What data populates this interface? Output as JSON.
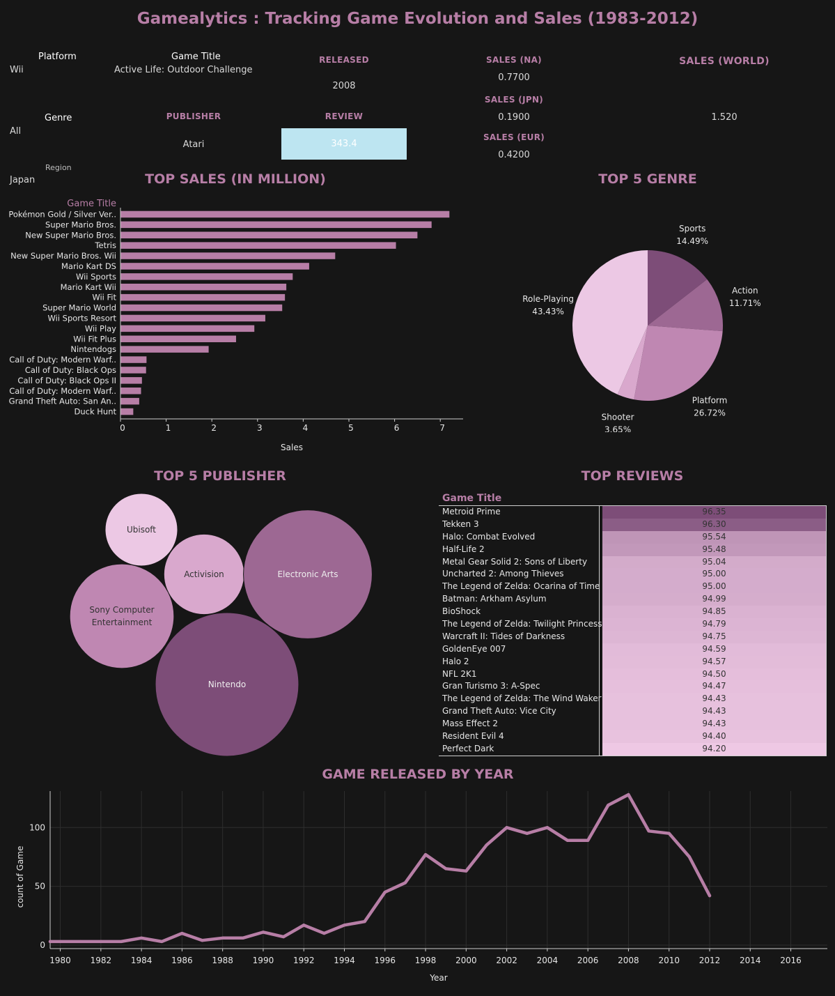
{
  "title": "Gamealytics : Tracking Game Evolution and Sales (1983-2012)",
  "filters": {
    "platform_label": "Platform",
    "platform_value": "Wii",
    "game_title_label": "Game Title",
    "game_title_value": "Active Life: Outdoor Challenge",
    "genre_label": "Genre",
    "genre_value": "All",
    "region_label": "Region",
    "region_value": "Japan"
  },
  "kpis": {
    "released_label": "RELEASED",
    "released_value": "2008",
    "publisher_label": "PUBLISHER",
    "publisher_value": "Atari",
    "review_label": "REVIEW",
    "review_value": "343.4",
    "sales_na_label": "SALES (NA)",
    "sales_na_value": "0.7700",
    "sales_jpn_label": "SALES (JPN)",
    "sales_jpn_value": "0.1900",
    "sales_eur_label": "SALES (EUR)",
    "sales_eur_value": "0.4200",
    "sales_world_label": "SALES (WORLD)",
    "sales_world_value": "1.520"
  },
  "colors": {
    "accent": "#b77ea6",
    "bar": "#b77ea6",
    "review_box": "#bde5f1",
    "line": "#b77ea6"
  },
  "chart_data": [
    {
      "type": "bar",
      "title": "TOP SALES (IN MILLION)",
      "category_header": "Game Title",
      "xlabel": "Sales",
      "xlim": [
        0,
        7.5
      ],
      "xticks": [
        0,
        1,
        2,
        3,
        4,
        5,
        6,
        7
      ],
      "categories": [
        "Pokémon Gold / Silver Ver..",
        "Super Mario Bros.",
        "New Super Mario Bros.",
        "Tetris",
        "New Super Mario Bros. Wii",
        "Mario Kart DS",
        "Wii Sports",
        "Mario Kart Wii",
        "Wii Fit",
        "Super Mario World",
        "Wii Sports Resort",
        "Wii Play",
        "Wii Fit Plus",
        "Nintendogs",
        "Call of Duty: Modern Warf..",
        "Call of Duty: Black Ops",
        "Call of Duty: Black Ops II",
        "Call of Duty: Modern Warf..",
        "Grand Theft Auto: San An..",
        "Duck Hunt"
      ],
      "values": [
        7.2,
        6.81,
        6.5,
        6.03,
        4.7,
        4.13,
        3.77,
        3.63,
        3.6,
        3.54,
        3.17,
        2.93,
        2.53,
        1.93,
        0.57,
        0.56,
        0.47,
        0.45,
        0.41,
        0.28
      ]
    },
    {
      "type": "pie",
      "title": "TOP 5 GENRE",
      "slices": [
        {
          "label": "Sports",
          "pct_label": "14.49%",
          "value": 14.49,
          "color": "#7d4d78"
        },
        {
          "label": "Action",
          "pct_label": "11.71%",
          "value": 11.71,
          "color": "#9d6893"
        },
        {
          "label": "Platform",
          "pct_label": "26.72%",
          "value": 26.72,
          "color": "#bf87b2"
        },
        {
          "label": "Shooter",
          "pct_label": "3.65%",
          "value": 3.65,
          "color": "#d9a8cd"
        },
        {
          "label": "Role-Playing",
          "pct_label": "43.43%",
          "value": 43.43,
          "color": "#ecc8e4"
        }
      ]
    },
    {
      "type": "bubble",
      "title": "TOP 5 PUBLISHER",
      "bubbles": [
        {
          "label": "Ubisoft",
          "size": 1.0,
          "color": "#ecc8e4",
          "text_color": "#333333"
        },
        {
          "label": "Activision",
          "size": 1.23,
          "color": "#d9a8cd",
          "text_color": "#333333"
        },
        {
          "label": "Electronic Arts",
          "size": 3.16,
          "color": "#9d6893",
          "text_color": "#eeeeee"
        },
        {
          "label": "Sony Computer Entertainment",
          "label_lines": [
            "Sony Computer",
            "Entertainment"
          ],
          "size": 2.07,
          "color": "#bf87b2",
          "text_color": "#333333"
        },
        {
          "label": "Nintendo",
          "size": 3.92,
          "color": "#7d4d78",
          "text_color": "#eeeeee"
        }
      ]
    },
    {
      "type": "table",
      "title": "TOP REVIEWS",
      "column_header": "Game Title",
      "rows": [
        {
          "name": "Metroid Prime",
          "value": "96.35"
        },
        {
          "name": "Tekken 3",
          "value": "96.30"
        },
        {
          "name": "Halo: Combat Evolved",
          "value": "95.54"
        },
        {
          "name": "Half-Life 2",
          "value": "95.48"
        },
        {
          "name": "Metal Gear Solid 2: Sons of Liberty",
          "value": "95.04"
        },
        {
          "name": "Uncharted 2: Among Thieves",
          "value": "95.00"
        },
        {
          "name": "The Legend of Zelda: Ocarina of Time",
          "value": "95.00"
        },
        {
          "name": "Batman: Arkham Asylum",
          "value": "94.99"
        },
        {
          "name": "BioShock",
          "value": "94.85"
        },
        {
          "name": "The Legend of Zelda: Twilight Princess",
          "value": "94.79"
        },
        {
          "name": "Warcraft II: Tides of Darkness",
          "value": "94.75"
        },
        {
          "name": "GoldenEye 007",
          "value": "94.59"
        },
        {
          "name": "Halo 2",
          "value": "94.57"
        },
        {
          "name": "NFL 2K1",
          "value": "94.50"
        },
        {
          "name": "Gran Turismo 3: A-Spec",
          "value": "94.47"
        },
        {
          "name": "The Legend of Zelda: The Wind Waker",
          "value": "94.43"
        },
        {
          "name": "Grand Theft Auto: Vice City",
          "value": "94.43"
        },
        {
          "name": "Mass Effect 2",
          "value": "94.43"
        },
        {
          "name": "Resident Evil 4",
          "value": "94.40"
        },
        {
          "name": "Perfect Dark",
          "value": "94.20"
        }
      ]
    },
    {
      "type": "line",
      "title": "GAME RELEASED BY YEAR",
      "xlabel": "Year",
      "ylabel": "count of Game",
      "xlim": [
        1979.5,
        2017.8
      ],
      "ylim": [
        -3,
        131
      ],
      "xticks": [
        1980,
        1982,
        1984,
        1986,
        1988,
        1990,
        1992,
        1994,
        1996,
        1998,
        2000,
        2002,
        2004,
        2006,
        2008,
        2010,
        2012,
        2014,
        2016
      ],
      "yticks": [
        0,
        50,
        100
      ],
      "grid": true,
      "x": [
        1979.5,
        1980,
        1981,
        1982,
        1983,
        1984,
        1985,
        1986,
        1987,
        1988,
        1989,
        1990,
        1991,
        1992,
        1993,
        1994,
        1995,
        1996,
        1997,
        1998,
        1999,
        2000,
        2001,
        2002,
        2003,
        2004,
        2005,
        2006,
        2007,
        2008,
        2009,
        2010,
        2011,
        2012
      ],
      "y": [
        3,
        3,
        3,
        3,
        3,
        6,
        3,
        10,
        4,
        6,
        6,
        11,
        7,
        17,
        10,
        17,
        20,
        45,
        53,
        77,
        65,
        63,
        85,
        100,
        95,
        100,
        89,
        89,
        119,
        128,
        97,
        95,
        75,
        42
      ]
    }
  ]
}
